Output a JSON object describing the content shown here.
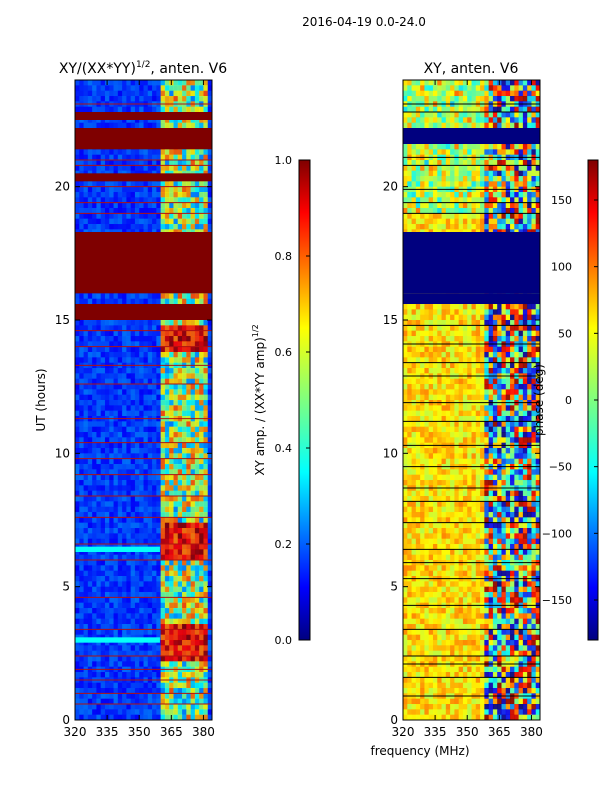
{
  "suptitle": "2016-04-19 0.0-24.0",
  "common_xlabel": "frequency (MHz)",
  "chart_data": [
    {
      "type": "heatmap",
      "title_main": "XY/(XX*YY)",
      "title_sup": "1/2",
      "title_tail": ", anten. V6",
      "xlabel": "frequency (MHz)",
      "ylabel": "UT (hours)",
      "xlim": [
        320,
        384
      ],
      "ylim": [
        0,
        24
      ],
      "xticks": [
        320,
        335,
        350,
        365,
        380
      ],
      "yticks": [
        0,
        5,
        10,
        15,
        20
      ],
      "colormap": "jet",
      "background_color": "#0b2aa8",
      "saturated_bands_hours": [
        [
          15.0,
          15.6
        ],
        [
          16.0,
          18.3
        ],
        [
          20.2,
          20.5
        ],
        [
          21.4,
          22.2
        ],
        [
          22.5,
          22.8
        ]
      ],
      "thin_flag_lines_hours": [
        0.6,
        1.0,
        1.5,
        1.9,
        2.4,
        3.4,
        4.6,
        6.0,
        6.6,
        7.6,
        8.4,
        9.2,
        9.8,
        10.4,
        11.3,
        12.6,
        13.3,
        14.0,
        14.6,
        19.0,
        19.4,
        20.0,
        20.8,
        21.0,
        23.1
      ],
      "highlight_band_hours": [
        [
          2.9,
          3.1
        ],
        [
          6.3,
          6.5
        ]
      ],
      "colorbar": {
        "label_main": "XY amp. / (XX*YY amp)",
        "label_sup": "1/2",
        "vmin": 0.0,
        "vmax": 1.0,
        "ticks": [
          0.0,
          0.2,
          0.4,
          0.6,
          0.8,
          1.0
        ],
        "tick_labels": [
          "0.0",
          "0.2",
          "0.4",
          "0.6",
          "0.8",
          "1.0"
        ]
      }
    },
    {
      "type": "heatmap",
      "title": "XY, anten. V6",
      "xlabel": "frequency (MHz)",
      "ylabel": "",
      "xlim": [
        320,
        384
      ],
      "ylim": [
        0,
        24
      ],
      "xticks": [
        320,
        335,
        350,
        365,
        380
      ],
      "yticks": [
        0,
        5,
        10,
        15,
        20
      ],
      "colormap": "jet",
      "background_color": "#f2cc30",
      "saturated_bands_hours": [
        [
          15.6,
          16.0
        ],
        [
          16.0,
          18.3
        ],
        [
          21.6,
          22.2
        ]
      ],
      "thin_flag_lines_hours": [
        0.9,
        1.6,
        2.1,
        2.4,
        3.4,
        4.3,
        5.3,
        5.9,
        6.4,
        7.4,
        8.2,
        8.7,
        9.5,
        10.3,
        11.2,
        11.9,
        12.9,
        13.4,
        14.1,
        14.8,
        19.0,
        19.4,
        19.9,
        20.8,
        21.1,
        22.8,
        23.1
      ],
      "colorbar": {
        "label_main": "phase (deg)",
        "label_sup": "",
        "vmin": -180,
        "vmax": 180,
        "ticks": [
          -150,
          -100,
          -50,
          0,
          50,
          100,
          150
        ],
        "tick_labels": [
          "−150",
          "−100",
          "−50",
          "0",
          "50",
          "100",
          "150"
        ]
      }
    }
  ]
}
